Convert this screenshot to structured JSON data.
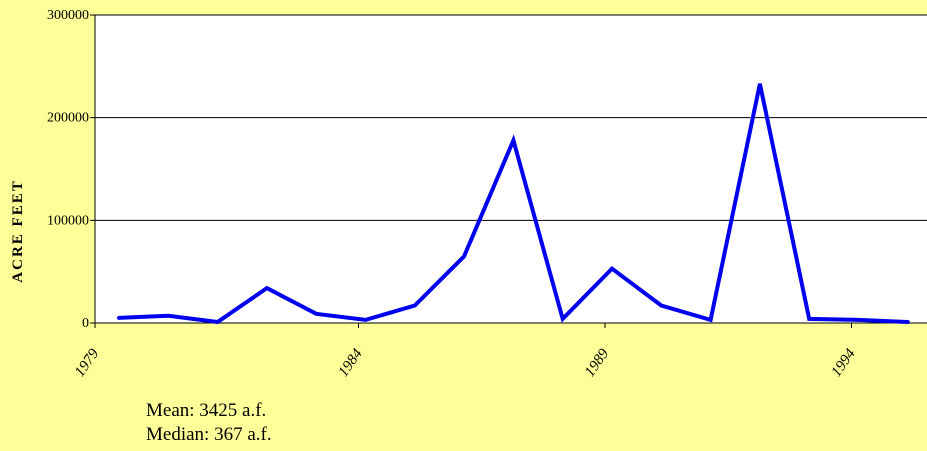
{
  "chart_data": {
    "type": "line",
    "ylabel": "ACRE FEET",
    "xlabel": "",
    "title": "",
    "ylim": [
      0,
      300000
    ],
    "yticks": [
      "0",
      "100000",
      "200000",
      "300000"
    ],
    "xticks": [
      "1979",
      "1984",
      "1989",
      "1994"
    ],
    "grid": true,
    "series": [
      {
        "color": "#0000ee",
        "x": [
          1979,
          1980,
          1981,
          1982,
          1983,
          1984,
          1985,
          1986,
          1987,
          1988,
          1989,
          1990,
          1991,
          1992,
          1993,
          1994,
          1995
        ],
        "values": [
          5000,
          7000,
          1000,
          34000,
          9000,
          3000,
          17000,
          65000,
          178000,
          4000,
          53000,
          17000,
          3000,
          233000,
          4000,
          3000,
          1000
        ]
      }
    ]
  },
  "stats": {
    "mean": "Mean: 3425 a.f.",
    "median": "Median: 367 a.f."
  }
}
